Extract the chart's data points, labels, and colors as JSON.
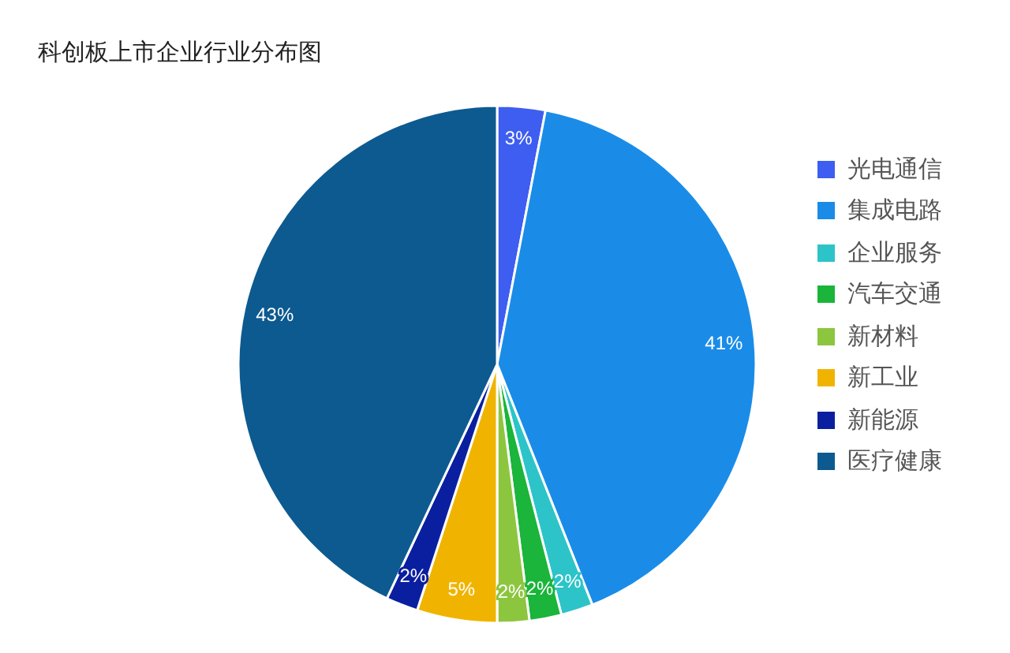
{
  "chart_data": {
    "type": "pie",
    "title": "科创板上市企业行业分布图",
    "categories": [
      "光电通信",
      "集成电路",
      "企业服务",
      "汽车交通",
      "新材料",
      "新工业",
      "新能源",
      "医疗健康"
    ],
    "values": [
      3,
      41,
      2,
      2,
      2,
      5,
      2,
      43
    ],
    "colors": [
      "#3d5ef0",
      "#1a8ce8",
      "#2cc4c8",
      "#1ab53a",
      "#8cc63f",
      "#f0b400",
      "#0a1fa0",
      "#0d5a90"
    ],
    "value_labels": [
      "3%",
      "41%",
      "2%",
      "2%",
      "2%",
      "5%",
      "2%",
      "43%"
    ],
    "legend": "right"
  }
}
